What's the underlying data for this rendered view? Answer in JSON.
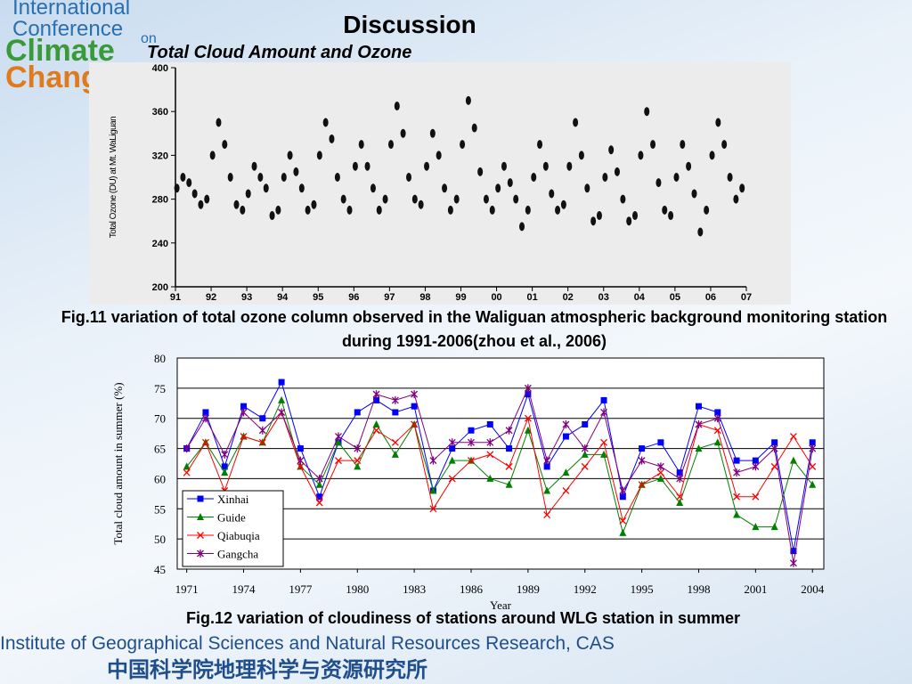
{
  "slide": {
    "logo": [
      "International",
      "Conference",
      "on",
      "Climate",
      "Change"
    ],
    "title": "Discussion",
    "subtitle": "Total Cloud Amount and Ozone",
    "caption1": "Fig.11 variation of total ozone column observed in the Waliguan atmospheric background monitoring station during 1991-2006(zhou et al., 2006)",
    "caption2": "Fig.12 variation of cloudiness of stations around WLG station in summer",
    "footer": "Institute of Geographical Sciences and Natural Resources Research, CAS",
    "footer_cn": "中国科学院地理科学与资源研究所"
  },
  "chart_data": [
    {
      "type": "scatter",
      "y_label": "Total Ozone (DU) at Mt. WaLiguan",
      "color": "#111111",
      "xlim": [
        1991,
        2007
      ],
      "ylim": [
        200,
        400
      ],
      "xticks": [
        {
          "value": 1991,
          "label": "91"
        },
        {
          "value": 1992,
          "label": "92"
        },
        {
          "value": 1993,
          "label": "93"
        },
        {
          "value": 1994,
          "label": "94"
        },
        {
          "value": 1995,
          "label": "95"
        },
        {
          "value": 1996,
          "label": "96"
        },
        {
          "value": 1997,
          "label": "97"
        },
        {
          "value": 1998,
          "label": "98"
        },
        {
          "value": 1999,
          "label": "99"
        },
        {
          "value": 2000,
          "label": "00"
        },
        {
          "value": 2001,
          "label": "01"
        },
        {
          "value": 2002,
          "label": "02"
        },
        {
          "value": 2003,
          "label": "03"
        },
        {
          "value": 2004,
          "label": "04"
        },
        {
          "value": 2005,
          "label": "05"
        },
        {
          "value": 2006,
          "label": "06"
        },
        {
          "value": 2007,
          "label": "07"
        }
      ],
      "yticks": [
        200,
        240,
        280,
        320,
        360,
        400
      ],
      "x": [
        1991.04,
        1991.21,
        1991.38,
        1991.54,
        1991.71,
        1991.88,
        1992.04,
        1992.21,
        1992.38,
        1992.54,
        1992.71,
        1992.88,
        1993.04,
        1993.21,
        1993.38,
        1993.54,
        1993.71,
        1993.88,
        1994.04,
        1994.21,
        1994.38,
        1994.54,
        1994.71,
        1994.88,
        1995.04,
        1995.21,
        1995.38,
        1995.54,
        1995.71,
        1995.88,
        1996.04,
        1996.21,
        1996.38,
        1996.54,
        1996.71,
        1996.88,
        1997.04,
        1997.21,
        1997.38,
        1997.54,
        1997.71,
        1997.88,
        1998.04,
        1998.21,
        1998.38,
        1998.54,
        1998.71,
        1998.88,
        1999.04,
        1999.21,
        1999.38,
        1999.54,
        1999.71,
        1999.88,
        2000.04,
        2000.21,
        2000.38,
        2000.54,
        2000.71,
        2000.88,
        2001.04,
        2001.21,
        2001.38,
        2001.54,
        2001.71,
        2001.88,
        2002.04,
        2002.21,
        2002.38,
        2002.54,
        2002.71,
        2002.88,
        2003.04,
        2003.21,
        2003.38,
        2003.54,
        2003.71,
        2003.88,
        2004.04,
        2004.21,
        2004.38,
        2004.54,
        2004.71,
        2004.88,
        2005.04,
        2005.21,
        2005.38,
        2005.54,
        2005.71,
        2005.88,
        2006.04,
        2006.21,
        2006.38,
        2006.54,
        2006.71,
        2006.88
      ],
      "values": [
        290,
        300,
        295,
        285,
        275,
        280,
        320,
        350,
        330,
        300,
        275,
        270,
        285,
        310,
        300,
        290,
        265,
        270,
        300,
        320,
        305,
        290,
        270,
        275,
        320,
        350,
        335,
        300,
        280,
        270,
        310,
        330,
        310,
        290,
        270,
        280,
        330,
        365,
        340,
        300,
        280,
        275,
        310,
        340,
        320,
        290,
        270,
        280,
        330,
        370,
        345,
        305,
        280,
        270,
        290,
        310,
        295,
        280,
        255,
        270,
        300,
        330,
        310,
        285,
        270,
        275,
        310,
        350,
        320,
        290,
        260,
        265,
        300,
        325,
        305,
        280,
        260,
        265,
        320,
        360,
        330,
        295,
        270,
        265,
        300,
        330,
        310,
        285,
        250,
        270,
        320,
        350,
        330,
        300,
        280,
        290
      ]
    },
    {
      "type": "line",
      "x_label": "Year",
      "y_label": "Total cloud amount in summer (%)",
      "xlim": [
        1970.5,
        2004.6
      ],
      "ylim": [
        45,
        80
      ],
      "xticks": [
        1971,
        1974,
        1977,
        1980,
        1983,
        1986,
        1989,
        1992,
        1995,
        1998,
        2001,
        2004
      ],
      "yticks": [
        45,
        50,
        55,
        60,
        65,
        70,
        75,
        80
      ],
      "grid": true,
      "legend": "lower-left",
      "x": [
        1971,
        1972,
        1973,
        1974,
        1975,
        1976,
        1977,
        1978,
        1979,
        1980,
        1981,
        1982,
        1983,
        1984,
        1985,
        1986,
        1987,
        1988,
        1989,
        1990,
        1991,
        1992,
        1993,
        1994,
        1995,
        1996,
        1997,
        1998,
        1999,
        2000,
        2001,
        2002,
        2003,
        2004
      ],
      "series": [
        {
          "name": "Xinhai",
          "color": "#0000ff",
          "marker": "square",
          "values": [
            65,
            71,
            62,
            72,
            70,
            76,
            65,
            57,
            66,
            71,
            73,
            71,
            72,
            58,
            65,
            68,
            69,
            65,
            74,
            62,
            67,
            69,
            73,
            57,
            65,
            66,
            61,
            72,
            71,
            63,
            63,
            66,
            48,
            66
          ]
        },
        {
          "name": "Guide",
          "color": "#008000",
          "marker": "triangle",
          "values": [
            62,
            66,
            61,
            67,
            66,
            73,
            62,
            59,
            66,
            62,
            69,
            64,
            69,
            58,
            63,
            63,
            60,
            59,
            68,
            58,
            61,
            64,
            64,
            51,
            59,
            60,
            56,
            65,
            66,
            54,
            52,
            52,
            63,
            59
          ]
        },
        {
          "name": "Qiabuqia",
          "color": "#ff0000",
          "marker": "x",
          "values": [
            61,
            66,
            58,
            67,
            66,
            71,
            62,
            56,
            63,
            63,
            68,
            66,
            69,
            55,
            60,
            63,
            64,
            62,
            70,
            54,
            58,
            62,
            66,
            53,
            59,
            61,
            57,
            69,
            68,
            57,
            57,
            62,
            67,
            62
          ]
        },
        {
          "name": "Gangcha",
          "color": "#800080",
          "marker": "star",
          "values": [
            65,
            70,
            64,
            71,
            68,
            71,
            63,
            60,
            67,
            65,
            74,
            73,
            74,
            63,
            66,
            66,
            66,
            68,
            75,
            63,
            69,
            65,
            71,
            58,
            63,
            62,
            60,
            69,
            70,
            61,
            62,
            65,
            46,
            65
          ]
        }
      ]
    }
  ]
}
